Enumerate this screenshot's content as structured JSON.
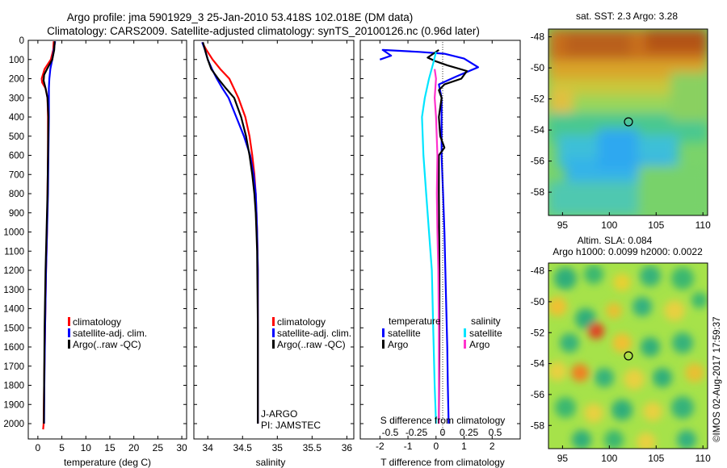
{
  "header": {
    "line1": "Argo profile: jma 5901929_3 25-Jan-2010 53.418S 102.018E (DM data)",
    "line2": "Climatology: CARS2009. Satellite-adjusted climatology: synTS_20100126.nc (0.96d later)"
  },
  "colors": {
    "climatology": "#ff0000",
    "satellite": "#0000ff",
    "argo": "#000000",
    "satellite_salinity": "#00e5ff",
    "argo_salinity": "#ff33cc"
  },
  "chart_data": [
    {
      "type": "line",
      "id": "temperature",
      "xlabel": "temperature (deg C)",
      "ylabel": "",
      "xlim": [
        -2,
        31
      ],
      "ylim": [
        2080,
        0
      ],
      "xticks": [
        0,
        5,
        10,
        15,
        20,
        25,
        30
      ],
      "xtick_labels": [
        "0",
        "5",
        "10",
        "15",
        "20",
        "25",
        "30"
      ],
      "yticks": [
        0,
        100,
        200,
        300,
        400,
        500,
        600,
        700,
        800,
        900,
        1000,
        1100,
        1200,
        1300,
        1400,
        1500,
        1600,
        1700,
        1800,
        1900,
        2000
      ],
      "ytick_labels": [
        "0",
        "100",
        "200",
        "300",
        "400",
        "500",
        "600",
        "700",
        "800",
        "900",
        "1000",
        "1100",
        "1200",
        "1300",
        "1400",
        "1500",
        "1600",
        "1700",
        "1800",
        "1900",
        "2000"
      ],
      "legend": [
        "climatology",
        "satellite-adj. clim.",
        "Argo(..raw -QC)"
      ],
      "series": [
        {
          "name": "climatology",
          "color": "#ff0000",
          "x": [
            3.3,
            3.2,
            2.7,
            1.4,
            0.8,
            0.9,
            1.6,
            2.0,
            2.1,
            2.1,
            2.0,
            1.9,
            1.7,
            1.5,
            1.3,
            1.2,
            1.1
          ],
          "y": [
            5,
            50,
            100,
            150,
            200,
            220,
            250,
            300,
            400,
            600,
            800,
            1000,
            1200,
            1500,
            1800,
            2000,
            2030
          ]
        },
        {
          "name": "satellite-adj. clim.",
          "color": "#0000ff",
          "x": [
            3.6,
            3.3,
            3.0,
            2.6,
            2.4,
            2.3,
            2.3,
            2.3,
            2.2,
            2.1,
            1.9,
            1.7,
            1.5,
            1.35,
            1.3
          ],
          "y": [
            5,
            50,
            100,
            150,
            200,
            250,
            300,
            400,
            600,
            800,
            1000,
            1200,
            1500,
            1800,
            2000
          ]
        },
        {
          "name": "Argo(..raw -QC)",
          "color": "#000000",
          "x": [
            3.5,
            3.4,
            3.0,
            1.9,
            1.3,
            1.2,
            1.6,
            2.0,
            2.2,
            2.1,
            2.0,
            1.8,
            1.6,
            1.4,
            1.3,
            1.25
          ],
          "y": [
            5,
            50,
            100,
            150,
            180,
            210,
            250,
            300,
            400,
            600,
            800,
            1000,
            1200,
            1500,
            1800,
            2000
          ]
        }
      ]
    },
    {
      "type": "line",
      "id": "salinity",
      "xlabel": "salinity",
      "ylabel": "",
      "xlim": [
        33.8,
        36.1
      ],
      "ylim": [
        2080,
        0
      ],
      "xticks": [
        34,
        34.5,
        35,
        35.5,
        36
      ],
      "xtick_labels": [
        "34",
        "34.5",
        "35",
        "35.5",
        "36"
      ],
      "legend": [
        "climatology",
        "satellite-adj. clim.",
        "Argo(..raw -QC)"
      ],
      "annotations": [
        "J-ARGO",
        "PI: JAMSTEC"
      ],
      "series": [
        {
          "name": "climatology",
          "color": "#ff0000",
          "x": [
            33.92,
            33.98,
            34.07,
            34.18,
            34.31,
            34.44,
            34.54,
            34.6,
            34.64,
            34.67,
            34.69,
            34.7,
            34.71,
            34.72,
            34.72,
            34.72
          ],
          "y": [
            10,
            50,
            100,
            150,
            200,
            300,
            400,
            500,
            600,
            700,
            800,
            900,
            1000,
            1200,
            1500,
            2000
          ]
        },
        {
          "name": "satellite-adj. clim.",
          "color": "#0000ff",
          "x": [
            33.92,
            33.96,
            34.0,
            34.06,
            34.13,
            34.21,
            34.3,
            34.41,
            34.52,
            34.61,
            34.66,
            34.69,
            34.7,
            34.71,
            34.72,
            34.72
          ],
          "y": [
            10,
            50,
            100,
            150,
            200,
            250,
            300,
            400,
            500,
            600,
            700,
            800,
            900,
            1000,
            1200,
            2000
          ]
        },
        {
          "name": "Argo(..raw -QC)",
          "color": "#000000",
          "x": [
            33.93,
            33.96,
            34.0,
            34.05,
            34.15,
            34.26,
            34.38,
            34.48,
            34.55,
            34.6,
            34.64,
            34.67,
            34.69,
            34.7,
            34.71,
            34.72,
            34.72
          ],
          "y": [
            10,
            50,
            100,
            150,
            200,
            250,
            300,
            400,
            500,
            600,
            700,
            800,
            900,
            1000,
            1100,
            1500,
            2000
          ]
        }
      ]
    },
    {
      "type": "line",
      "id": "difference",
      "xlabel": "T difference from climatology",
      "xlabel_top": "S difference from climatology",
      "xlim": [
        -2.7,
        3.0
      ],
      "ylim": [
        2080,
        0
      ],
      "xticks": [
        -2,
        -1,
        0,
        1,
        2
      ],
      "xtick_labels": [
        "-2",
        "-1",
        "0",
        "1",
        "2"
      ],
      "s_xticks": [
        -0.5,
        -0.25,
        0,
        0.25,
        0.5
      ],
      "s_xtick_labels": [
        "-0.5",
        "-0.25",
        "0",
        "0.25",
        "0.5"
      ],
      "legend_left_title": "temperature",
      "legend_right_title": "salinity",
      "legend": [
        "satellite",
        "Argo",
        "satellite",
        "Argo"
      ],
      "series": [
        {
          "name": "satellite",
          "group": "temperature",
          "color": "#0000ff",
          "x": [
            -2.0,
            -1.6,
            -1.9,
            -0.6,
            0.3,
            1.0,
            1.5,
            0.7,
            0.1,
            0.2,
            0.2,
            0.2,
            0.25,
            0.3,
            0.35,
            0.4,
            0.42,
            0.45
          ],
          "y": [
            100,
            80,
            50,
            60,
            70,
            95,
            140,
            190,
            230,
            300,
            400,
            600,
            800,
            1000,
            1300,
            1600,
            1800,
            2000
          ]
        },
        {
          "name": "Argo",
          "group": "temperature",
          "color": "#000000",
          "x": [
            0.1,
            -0.3,
            0.0,
            0.4,
            1.1,
            0.9,
            0.3,
            0.1,
            0.2,
            0.1,
            0.15,
            0.3,
            0.1,
            0.1,
            0.12,
            0.12,
            0.1
          ],
          "y": [
            50,
            90,
            110,
            130,
            160,
            200,
            230,
            260,
            300,
            400,
            500,
            560,
            600,
            800,
            1200,
            1600,
            2000
          ]
        },
        {
          "name": "satellite",
          "group": "salinity",
          "color": "#00e5ff",
          "x": [
            0.0,
            -0.1,
            -0.25,
            -0.4,
            -0.5,
            -0.45,
            -0.35,
            -0.25,
            -0.15,
            -0.1,
            -0.05,
            0.0
          ],
          "y": [
            60,
            120,
            200,
            300,
            400,
            600,
            800,
            1000,
            1200,
            1500,
            1800,
            2000
          ]
        },
        {
          "name": "Argo",
          "group": "salinity",
          "color": "#ff33cc",
          "x": [
            -0.05,
            0.0,
            -0.05,
            0.0,
            0.05,
            0.03,
            0.05,
            0.08,
            0.1,
            0.1,
            0.1
          ],
          "y": [
            150,
            200,
            300,
            400,
            600,
            800,
            1000,
            1200,
            1500,
            1800,
            2000
          ]
        }
      ]
    },
    {
      "type": "heatmap",
      "id": "sst_map",
      "title": "sat. SST: 2.3 Argo: 3.28",
      "xlim": [
        93.5,
        110.5
      ],
      "ylim": [
        -59.5,
        -47.5
      ],
      "xticks": [
        95,
        100,
        105,
        110
      ],
      "xtick_labels": [
        "95",
        "100",
        "105",
        "110"
      ],
      "yticks": [
        -48,
        -50,
        -52,
        -54,
        -56,
        -58
      ],
      "ytick_labels": [
        "-48",
        "-50",
        "-52",
        "-54",
        "-56",
        "-58"
      ],
      "marker": {
        "lon": 102.018,
        "lat": -53.418
      }
    },
    {
      "type": "heatmap",
      "id": "sla_map",
      "title": "Altim. SLA: 0.084",
      "subtitle": "Argo h1000: 0.0099 h2000: 0.0022",
      "xlim": [
        93.5,
        110.5
      ],
      "ylim": [
        -59.5,
        -47.5
      ],
      "xticks": [
        95,
        100,
        105,
        110
      ],
      "xtick_labels": [
        "95",
        "100",
        "105",
        "110"
      ],
      "yticks": [
        -48,
        -50,
        -52,
        -54,
        -56,
        -58
      ],
      "ytick_labels": [
        "-48",
        "-50",
        "-52",
        "-54",
        "-56",
        "-58"
      ],
      "marker": {
        "lon": 102.018,
        "lat": -53.418
      },
      "side_label": "©IMOS 02-Aug-2017 17:59:37"
    }
  ]
}
